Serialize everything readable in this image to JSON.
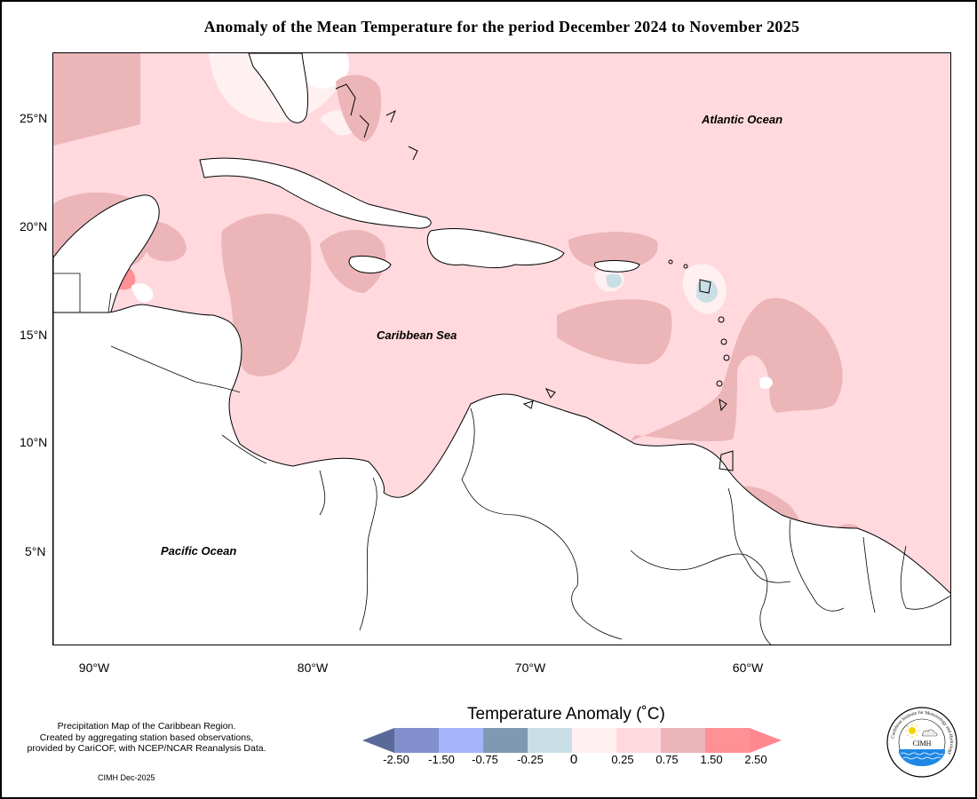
{
  "title": "Anomaly of the Mean Temperature for the period December 2024 to November 2025",
  "map": {
    "latitude_labels": [
      "25°N",
      "20°N",
      "15°N",
      "10°N",
      "5°N"
    ],
    "longitude_labels": [
      "90°W",
      "80°W",
      "70°W",
      "60°W"
    ],
    "ocean_labels": {
      "atlantic": "Atlantic Ocean",
      "caribbean": "Caribbean Sea",
      "pacific": "Pacific Ocean"
    },
    "extent": {
      "lon_min": -92,
      "lon_max": -51,
      "lat_min": 0.5,
      "lat_max": 28
    },
    "field_summary": "Anomalies mostly 0.25 to 0.75 °C over the Caribbean Sea; patches 0.75 to 1.50 °C; small negative patches near Puerto Rico and Guadeloupe"
  },
  "legend": {
    "title": "Temperature Anomaly (˚C)",
    "ticks": [
      "-2.50",
      "-1.50",
      "-0.75",
      "-0.25",
      "0",
      "0.25",
      "0.75",
      "1.50",
      "2.50"
    ],
    "colors": [
      "#5a6a98",
      "#8190cc",
      "#a6b4fb",
      "#8099b2",
      "#c9dfe5",
      "#fff0f1",
      "#ffd9de",
      "#ecb5b8",
      "#ff9096",
      "#ff8890"
    ]
  },
  "caption": {
    "lines": [
      "Precipitation Map of the Caribbean Region.",
      "Created by aggregating station based observations,",
      "provided by CariCOF, with NCEP/NCAR Reanalysis Data."
    ],
    "credit": "CIMH Dec-2025"
  },
  "logo": {
    "text": "CIMH",
    "ring_text": "Caribbean Institute for Meteorology and Hydrology"
  }
}
